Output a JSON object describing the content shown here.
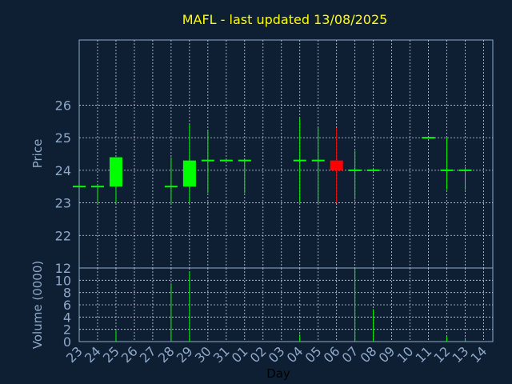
{
  "chart_data": {
    "type": "candlestick",
    "title": "MAFL - last updated 13/08/2025",
    "xlabel": "Day",
    "colors": {
      "background": "#0f1f33",
      "grid": "#c8d0dc",
      "axis": "#8fa8c8",
      "title": "#ffff00",
      "up": "#00ff00",
      "down": "#ff0000"
    },
    "categories": [
      "23",
      "24",
      "25",
      "26",
      "27",
      "28",
      "29",
      "30",
      "31",
      "01",
      "02",
      "03",
      "04",
      "05",
      "06",
      "07",
      "08",
      "09",
      "10",
      "11",
      "12",
      "13",
      "14"
    ],
    "price_panel": {
      "ylabel": "Price",
      "ylim": [
        21,
        28
      ],
      "ticks": [
        22,
        23,
        24,
        25,
        26
      ]
    },
    "volume_panel": {
      "ylabel": "Volume (0000)",
      "ylim": [
        0,
        12
      ],
      "ticks": [
        0,
        2,
        4,
        6,
        8,
        10,
        12
      ]
    },
    "candles": [
      {
        "day": "23",
        "open": 23.5,
        "high": 23.5,
        "low": 23.5,
        "close": 23.5,
        "volume": 0
      },
      {
        "day": "24",
        "open": 23.5,
        "high": 23.5,
        "low": 23.0,
        "close": 23.5,
        "volume": 0
      },
      {
        "day": "25",
        "open": 23.5,
        "high": 24.4,
        "low": 23.0,
        "close": 24.4,
        "volume": 1.8
      },
      {
        "day": "28",
        "open": 23.5,
        "high": 24.4,
        "low": 23.0,
        "close": 23.5,
        "volume": 9.5
      },
      {
        "day": "29",
        "open": 23.5,
        "high": 25.4,
        "low": 23.0,
        "close": 24.3,
        "volume": 11.4
      },
      {
        "day": "30",
        "open": 24.3,
        "high": 25.2,
        "low": 23.3,
        "close": 24.3,
        "volume": 0
      },
      {
        "day": "31",
        "open": 24.3,
        "high": 24.3,
        "low": 24.3,
        "close": 24.3,
        "volume": 0
      },
      {
        "day": "01",
        "open": 24.3,
        "high": 24.3,
        "low": 23.3,
        "close": 24.3,
        "volume": 0
      },
      {
        "day": "04",
        "open": 24.3,
        "high": 25.6,
        "low": 23.0,
        "close": 24.3,
        "volume": 1.2
      },
      {
        "day": "05",
        "open": 24.3,
        "high": 25.3,
        "low": 23.0,
        "close": 24.3,
        "volume": 0
      },
      {
        "day": "06",
        "open": 24.3,
        "high": 25.3,
        "low": 23.0,
        "close": 24.0,
        "volume": 0
      },
      {
        "day": "07",
        "open": 24.0,
        "high": 24.6,
        "low": 23.1,
        "close": 24.0,
        "volume": 11.9
      },
      {
        "day": "08",
        "open": 24.0,
        "high": 24.0,
        "low": 24.0,
        "close": 24.0,
        "volume": 5.3
      },
      {
        "day": "11",
        "open": 25.0,
        "high": 25.0,
        "low": 25.0,
        "close": 25.0,
        "volume": 0
      },
      {
        "day": "12",
        "open": 24.0,
        "high": 25.0,
        "low": 23.4,
        "close": 24.0,
        "volume": 0.8
      },
      {
        "day": "13",
        "open": 24.0,
        "high": 24.1,
        "low": 23.4,
        "close": 24.0,
        "volume": 0.6
      }
    ]
  }
}
